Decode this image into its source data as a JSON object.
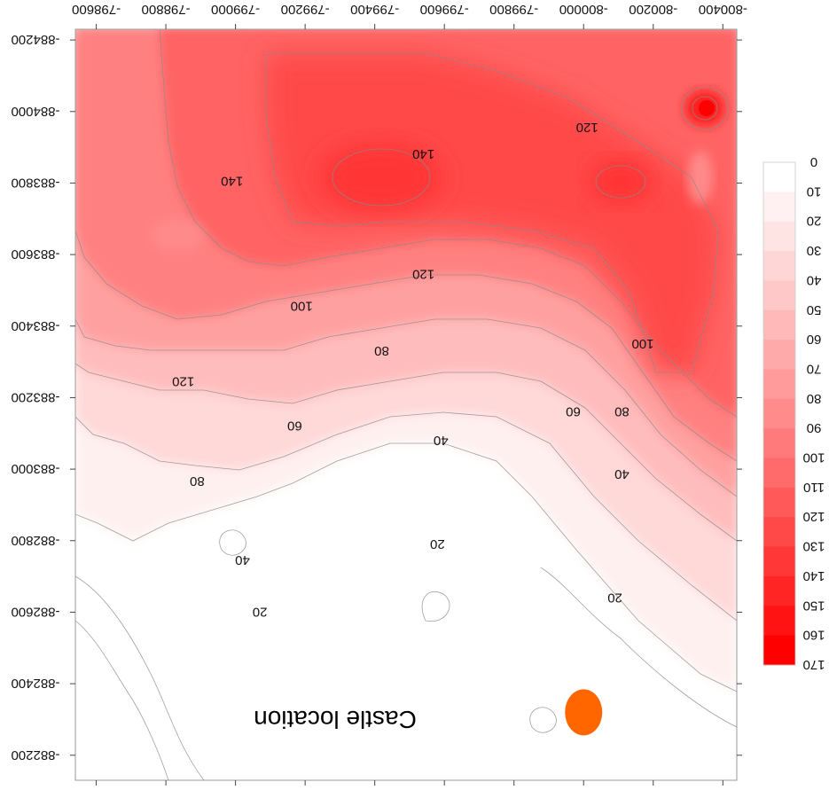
{
  "chart_data": {
    "type": "contour",
    "title": "",
    "xlabel": "",
    "ylabel": "",
    "orientation": "rotated 180 degrees",
    "xlim": [
      -800440,
      -798540
    ],
    "ylim": [
      -884230,
      -882130
    ],
    "x_ticks": [
      -800400,
      -800200,
      -800000,
      -799800,
      -799600,
      -799400,
      -799200,
      -799000,
      -798800,
      -798600
    ],
    "x_tick_labels": [
      "-800400",
      "-800200",
      "-800000",
      "-799800",
      "-799600",
      "-799400",
      "-799200",
      "-799000",
      "-798800",
      "-798600"
    ],
    "y_ticks": [
      -884200,
      -884000,
      -883800,
      -883600,
      -883400,
      -883200,
      -883000,
      -882800,
      -882600,
      -882400,
      -882200
    ],
    "y_tick_labels": [
      "-884200",
      "-884000",
      "-883800",
      "-883600",
      "-883400",
      "-883200",
      "-883000",
      "-882800",
      "-882600",
      "-882400",
      "-882200"
    ],
    "colorbar": {
      "levels": [
        0,
        10,
        20,
        30,
        40,
        50,
        60,
        70,
        80,
        90,
        100,
        110,
        120,
        130,
        140,
        150,
        160,
        170
      ],
      "labels": [
        "0",
        "10",
        "20",
        "30",
        "40",
        "50",
        "60",
        "70",
        "80",
        "90",
        "100",
        "110",
        "120",
        "130",
        "140",
        "150",
        "160",
        "170"
      ],
      "colors": [
        "#ffffff",
        "#ffffff",
        "#fff1f1",
        "#ffe4e4",
        "#ffd6d6",
        "#ffc8c8",
        "#ffb9b9",
        "#ffaaaa",
        "#ff9b9b",
        "#ff8b8b",
        "#ff7b7b",
        "#ff6a6a",
        "#ff5959",
        "#ff4848",
        "#ff3737",
        "#ff2525",
        "#ff1313",
        "#ff0000"
      ]
    },
    "contour_labels": [
      {
        "text": "120",
        "x": -800010,
        "y": -883955
      },
      {
        "text": "140",
        "x": -799540,
        "y": -883880
      },
      {
        "text": "140",
        "x": -798990,
        "y": -883805
      },
      {
        "text": "120",
        "x": -799540,
        "y": -883545
      },
      {
        "text": "100",
        "x": -799190,
        "y": -883455
      },
      {
        "text": "100",
        "x": -800170,
        "y": -883350
      },
      {
        "text": "80",
        "x": -799420,
        "y": -883330
      },
      {
        "text": "120",
        "x": -798850,
        "y": -883245
      },
      {
        "text": "80",
        "x": -800110,
        "y": -883160
      },
      {
        "text": "60",
        "x": -799970,
        "y": -883160
      },
      {
        "text": "60",
        "x": -799170,
        "y": -883120
      },
      {
        "text": "40",
        "x": -799590,
        "y": -883080
      },
      {
        "text": "40",
        "x": -800110,
        "y": -882985
      },
      {
        "text": "80",
        "x": -798890,
        "y": -882965
      },
      {
        "text": "20",
        "x": -799580,
        "y": -882790
      },
      {
        "text": "40",
        "x": -799020,
        "y": -882745
      },
      {
        "text": "20",
        "x": -800090,
        "y": -882640
      },
      {
        "text": "20",
        "x": -799070,
        "y": -882600
      }
    ],
    "marker": {
      "label": "Castle location",
      "x": -800000,
      "y": -882320,
      "color": "#ff6600"
    }
  }
}
